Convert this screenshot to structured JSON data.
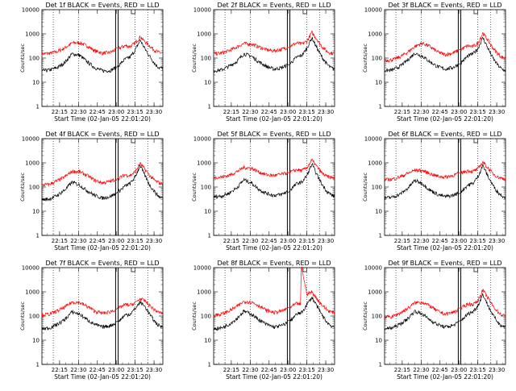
{
  "chart_data": [
    {
      "type": "line",
      "title": "Det 1f BLACK = Events, RED = LLD",
      "ylabel": "Counts/sec",
      "xlabel": "Start Time (02-Jan-05 22:01:20)",
      "ylog": true,
      "ylim": [
        1,
        10000
      ],
      "yticks": [
        "1",
        "10",
        "100",
        "1000",
        "10000"
      ],
      "xticks": [
        "22:15",
        "22:30",
        "22:45",
        "23:00",
        "23:15",
        "23:30"
      ],
      "series": [
        {
          "color": "#ff0000",
          "x": [
            0,
            6,
            12,
            18,
            24,
            30,
            36,
            42,
            48,
            54,
            60,
            66,
            70,
            74,
            78,
            82,
            86,
            90,
            93,
            96
          ],
          "values": [
            150,
            155,
            185,
            260,
            420,
            430,
            320,
            200,
            160,
            170,
            240,
            330,
            300,
            420,
            760,
            470,
            300,
            200,
            170,
            160
          ]
        },
        {
          "color": "#000000",
          "x": [
            0,
            6,
            12,
            18,
            24,
            30,
            36,
            42,
            48,
            54,
            60,
            66,
            70,
            74,
            78,
            82,
            86,
            90,
            93,
            96
          ],
          "values": [
            30,
            32,
            40,
            65,
            150,
            130,
            70,
            40,
            30,
            30,
            45,
            90,
            110,
            210,
            560,
            230,
            110,
            55,
            40,
            38
          ]
        }
      ]
    },
    {
      "type": "line",
      "title": "Det 2f BLACK = Events, RED = LLD",
      "ylabel": "Counts/sec",
      "xlabel": "Start Time (02-Jan-05 22:01:20)",
      "ylog": true,
      "ylim": [
        1,
        10000
      ],
      "yticks": [
        "1",
        "10",
        "100",
        "1000",
        "10000"
      ],
      "xticks": [
        "22:15",
        "22:30",
        "22:45",
        "23:00",
        "23:15",
        "23:30"
      ],
      "series": [
        {
          "color": "#ff0000",
          "x": [
            0,
            6,
            12,
            18,
            24,
            30,
            36,
            42,
            48,
            54,
            60,
            66,
            70,
            74,
            78,
            82,
            86,
            90,
            93,
            96
          ],
          "values": [
            150,
            160,
            200,
            280,
            400,
            380,
            290,
            220,
            200,
            230,
            300,
            420,
            380,
            500,
            1150,
            600,
            300,
            190,
            160,
            160
          ]
        },
        {
          "color": "#000000",
          "x": [
            0,
            6,
            12,
            18,
            24,
            30,
            36,
            42,
            48,
            54,
            60,
            66,
            70,
            74,
            78,
            82,
            86,
            90,
            93,
            96
          ],
          "values": [
            30,
            32,
            45,
            70,
            150,
            120,
            70,
            45,
            35,
            40,
            55,
            110,
            130,
            250,
            700,
            260,
            110,
            55,
            40,
            35
          ]
        }
      ]
    },
    {
      "type": "line",
      "title": "Det 3f BLACK = Events, RED = LLD",
      "ylabel": "Counts/sec",
      "xlabel": "Start Time (02-Jan-05 22:01:20)",
      "ylog": true,
      "ylim": [
        1,
        10000
      ],
      "yticks": [
        "1",
        "10",
        "100",
        "1000",
        "10000"
      ],
      "xticks": [
        "22:15",
        "22:30",
        "22:45",
        "23:00",
        "23:15",
        "23:30"
      ],
      "series": [
        {
          "color": "#ff0000",
          "x": [
            0,
            6,
            12,
            18,
            24,
            30,
            36,
            42,
            48,
            54,
            60,
            66,
            70,
            74,
            78,
            82,
            86,
            90,
            93,
            96
          ],
          "values": [
            80,
            85,
            110,
            170,
            300,
            420,
            300,
            180,
            140,
            160,
            220,
            320,
            300,
            400,
            1100,
            550,
            260,
            150,
            110,
            100
          ]
        },
        {
          "color": "#000000",
          "x": [
            0,
            6,
            12,
            18,
            24,
            30,
            36,
            42,
            48,
            54,
            60,
            66,
            70,
            74,
            78,
            82,
            86,
            90,
            93,
            96
          ],
          "values": [
            30,
            32,
            45,
            80,
            160,
            120,
            70,
            45,
            35,
            40,
            60,
            120,
            150,
            240,
            700,
            260,
            100,
            50,
            35,
            30
          ]
        }
      ]
    },
    {
      "type": "line",
      "title": "Det 4f BLACK = Events, RED = LLD",
      "ylabel": "Counts/sec",
      "xlabel": "Start Time (02-Jan-05 22:01:20)",
      "ylog": true,
      "ylim": [
        1,
        10000
      ],
      "yticks": [
        "1",
        "10",
        "100",
        "1000",
        "10000"
      ],
      "xticks": [
        "22:15",
        "22:30",
        "22:45",
        "23:00",
        "23:15",
        "23:30"
      ],
      "series": [
        {
          "color": "#ff0000",
          "x": [
            0,
            6,
            12,
            18,
            24,
            30,
            36,
            42,
            48,
            54,
            60,
            66,
            70,
            74,
            78,
            82,
            86,
            90,
            93,
            96
          ],
          "values": [
            120,
            130,
            180,
            260,
            450,
            430,
            300,
            190,
            150,
            170,
            220,
            320,
            300,
            420,
            950,
            520,
            280,
            180,
            150,
            130
          ]
        },
        {
          "color": "#000000",
          "x": [
            0,
            6,
            12,
            18,
            24,
            30,
            36,
            42,
            48,
            54,
            60,
            66,
            70,
            74,
            78,
            82,
            86,
            90,
            93,
            96
          ],
          "values": [
            30,
            32,
            45,
            75,
            160,
            120,
            70,
            45,
            35,
            40,
            60,
            110,
            140,
            260,
            800,
            280,
            110,
            60,
            40,
            35
          ]
        }
      ]
    },
    {
      "type": "line",
      "title": "Det 5f BLACK = Events, RED = LLD",
      "ylabel": "Counts/sec",
      "xlabel": "Start Time (02-Jan-05 22:01:20)",
      "ylog": true,
      "ylim": [
        1,
        10000
      ],
      "yticks": [
        "1",
        "10",
        "100",
        "1000",
        "10000"
      ],
      "xticks": [
        "22:15",
        "22:30",
        "22:45",
        "23:00",
        "23:15",
        "23:30"
      ],
      "series": [
        {
          "color": "#ff0000",
          "x": [
            0,
            6,
            12,
            18,
            24,
            30,
            36,
            42,
            48,
            54,
            60,
            66,
            70,
            74,
            78,
            82,
            86,
            90,
            93,
            96
          ],
          "values": [
            250,
            260,
            300,
            420,
            650,
            600,
            420,
            320,
            300,
            340,
            400,
            520,
            480,
            620,
            1300,
            700,
            380,
            270,
            250,
            250
          ]
        },
        {
          "color": "#000000",
          "x": [
            0,
            6,
            12,
            18,
            24,
            30,
            36,
            42,
            48,
            54,
            60,
            66,
            70,
            74,
            78,
            82,
            86,
            90,
            93,
            96
          ],
          "values": [
            40,
            42,
            55,
            90,
            200,
            150,
            80,
            55,
            45,
            50,
            70,
            140,
            160,
            300,
            900,
            320,
            130,
            65,
            50,
            40
          ]
        }
      ]
    },
    {
      "type": "line",
      "title": "Det 6f BLACK = Events, RED = LLD",
      "ylabel": "Counts/sec",
      "xlabel": "Start Time (02-Jan-05 22:01:20)",
      "ylog": true,
      "ylim": [
        1,
        10000
      ],
      "yticks": [
        "1",
        "10",
        "100",
        "1000",
        "10000"
      ],
      "xticks": [
        "22:15",
        "22:30",
        "22:45",
        "23:00",
        "23:15",
        "23:30"
      ],
      "series": [
        {
          "color": "#ff0000",
          "x": [
            0,
            6,
            12,
            18,
            24,
            30,
            36,
            42,
            48,
            54,
            60,
            66,
            70,
            74,
            78,
            82,
            86,
            90,
            93,
            96
          ],
          "values": [
            200,
            210,
            260,
            360,
            500,
            480,
            360,
            280,
            260,
            300,
            380,
            480,
            440,
            560,
            1100,
            620,
            360,
            260,
            230,
            220
          ]
        },
        {
          "color": "#000000",
          "x": [
            0,
            6,
            12,
            18,
            24,
            30,
            36,
            42,
            48,
            54,
            60,
            66,
            70,
            74,
            78,
            82,
            86,
            90,
            93,
            96
          ],
          "values": [
            35,
            38,
            50,
            85,
            190,
            140,
            75,
            50,
            40,
            45,
            60,
            120,
            140,
            260,
            800,
            280,
            120,
            60,
            45,
            38
          ]
        }
      ]
    },
    {
      "type": "line",
      "title": "Det 7f BLACK = Events, RED = LLD",
      "ylabel": "Counts/sec",
      "xlabel": "Start Time (02-Jan-05 22:01:20)",
      "ylog": true,
      "ylim": [
        1,
        10000
      ],
      "yticks": [
        "1",
        "10",
        "100",
        "1000",
        "10000"
      ],
      "xticks": [
        "22:15",
        "22:30",
        "22:45",
        "23:00",
        "23:15",
        "23:30"
      ],
      "series": [
        {
          "color": "#ff0000",
          "x": [
            0,
            6,
            12,
            18,
            24,
            30,
            36,
            42,
            48,
            54,
            60,
            66,
            70,
            74,
            78,
            82,
            86,
            90,
            93,
            96
          ],
          "values": [
            110,
            120,
            160,
            230,
            380,
            360,
            250,
            160,
            130,
            150,
            200,
            300,
            280,
            350,
            520,
            420,
            260,
            170,
            140,
            130
          ]
        },
        {
          "color": "#000000",
          "x": [
            0,
            6,
            12,
            18,
            24,
            30,
            36,
            42,
            48,
            54,
            60,
            66,
            70,
            74,
            78,
            82,
            86,
            90,
            93,
            96
          ],
          "values": [
            30,
            32,
            45,
            70,
            150,
            120,
            70,
            45,
            35,
            40,
            55,
            110,
            120,
            200,
            380,
            240,
            110,
            55,
            40,
            35
          ]
        }
      ]
    },
    {
      "type": "line",
      "title": "Det 8f BLACK = Events, RED = LLD",
      "ylabel": "Counts/sec",
      "xlabel": "Start Time (02-Jan-05 22:01:20)",
      "ylog": true,
      "ylim": [
        1,
        10000
      ],
      "yticks": [
        "1",
        "10",
        "100",
        "1000",
        "10000"
      ],
      "xticks": [
        "22:15",
        "22:30",
        "22:45",
        "23:00",
        "23:15",
        "23:30"
      ],
      "series": [
        {
          "color": "#ff0000",
          "x": [
            0,
            6,
            12,
            18,
            24,
            30,
            36,
            42,
            48,
            54,
            60,
            66,
            69,
            69.5,
            70,
            74,
            78,
            82,
            86,
            90,
            93,
            96
          ],
          "values": [
            110,
            120,
            160,
            240,
            400,
            380,
            270,
            170,
            140,
            160,
            220,
            330,
            300,
            9500,
            9500,
            800,
            1000,
            520,
            290,
            180,
            150,
            140
          ]
        },
        {
          "color": "#000000",
          "x": [
            0,
            6,
            12,
            18,
            24,
            30,
            36,
            42,
            48,
            54,
            60,
            66,
            70,
            74,
            78,
            82,
            86,
            90,
            93,
            96
          ],
          "values": [
            30,
            32,
            45,
            75,
            160,
            120,
            70,
            45,
            35,
            40,
            60,
            120,
            140,
            300,
            600,
            260,
            110,
            55,
            40,
            35
          ]
        }
      ]
    },
    {
      "type": "line",
      "title": "Det 9f BLACK = Events, RED = LLD",
      "ylabel": "Counts/sec",
      "xlabel": "Start Time (02-Jan-05 22:01:20)",
      "ylog": true,
      "ylim": [
        1,
        10000
      ],
      "yticks": [
        "1",
        "10",
        "100",
        "1000",
        "10000"
      ],
      "xticks": [
        "22:15",
        "22:30",
        "22:45",
        "23:00",
        "23:15",
        "23:30"
      ],
      "series": [
        {
          "color": "#ff0000",
          "x": [
            0,
            6,
            12,
            18,
            24,
            30,
            36,
            42,
            48,
            54,
            60,
            66,
            70,
            74,
            78,
            82,
            86,
            90,
            93,
            96
          ],
          "values": [
            90,
            95,
            130,
            200,
            350,
            380,
            260,
            160,
            120,
            140,
            200,
            320,
            300,
            420,
            1200,
            560,
            260,
            150,
            110,
            100
          ]
        },
        {
          "color": "#000000",
          "x": [
            0,
            6,
            12,
            18,
            24,
            30,
            36,
            42,
            48,
            54,
            60,
            66,
            70,
            74,
            78,
            82,
            86,
            90,
            93,
            96
          ],
          "values": [
            30,
            32,
            45,
            75,
            160,
            120,
            70,
            45,
            35,
            40,
            60,
            120,
            150,
            260,
            800,
            280,
            110,
            55,
            40,
            35
          ]
        }
      ]
    }
  ]
}
